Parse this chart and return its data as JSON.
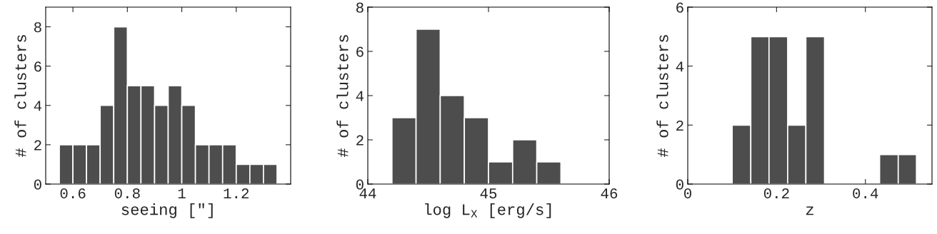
{
  "chart_data": [
    {
      "type": "histogram",
      "bins": [
        0.55,
        0.6,
        0.65,
        0.7,
        0.75,
        0.8,
        0.85,
        0.9,
        0.95,
        1.0,
        1.05,
        1.1,
        1.15,
        1.2,
        1.25,
        1.3,
        1.35
      ],
      "values": [
        2,
        2,
        2,
        4,
        8,
        5,
        5,
        4,
        5,
        4,
        2,
        2,
        2,
        1,
        1,
        1
      ],
      "color": "#4d4d4d",
      "xlabel": "seeing [\"]",
      "ylabel": "# of clusters",
      "xlim": [
        0.5,
        1.4
      ],
      "ylim": [
        0,
        9
      ],
      "xticks": [
        0.6,
        0.8,
        1,
        1.2
      ],
      "yticks": [
        0,
        2,
        4,
        6,
        8
      ]
    },
    {
      "type": "histogram",
      "bins": [
        44.2,
        44.4,
        44.6,
        44.8,
        45.0,
        45.2,
        45.4,
        45.6
      ],
      "values": [
        3,
        7,
        4,
        3,
        1,
        2,
        1
      ],
      "color": "#4d4d4d",
      "xlabel": "log L$_{X}$ [erg/s]",
      "ylabel": "# of clusters",
      "xlim": [
        44,
        46
      ],
      "ylim": [
        0,
        8
      ],
      "xticks": [
        44,
        45,
        46
      ],
      "yticks": [
        0,
        2,
        4,
        6,
        8
      ]
    },
    {
      "type": "histogram",
      "bins": [
        0.1,
        0.142,
        0.183,
        0.225,
        0.266,
        0.308,
        0.432,
        0.474,
        0.515
      ],
      "values": [
        2,
        5,
        5,
        2,
        5,
        0,
        1,
        1
      ],
      "color": "#4d4d4d",
      "xlabel": "z",
      "ylabel": "# of clusters",
      "xlim": [
        0,
        0.55
      ],
      "ylim": [
        0,
        6
      ],
      "xticks": [
        0,
        0.2,
        0.4
      ],
      "yticks": [
        0,
        2,
        4,
        6
      ]
    }
  ]
}
